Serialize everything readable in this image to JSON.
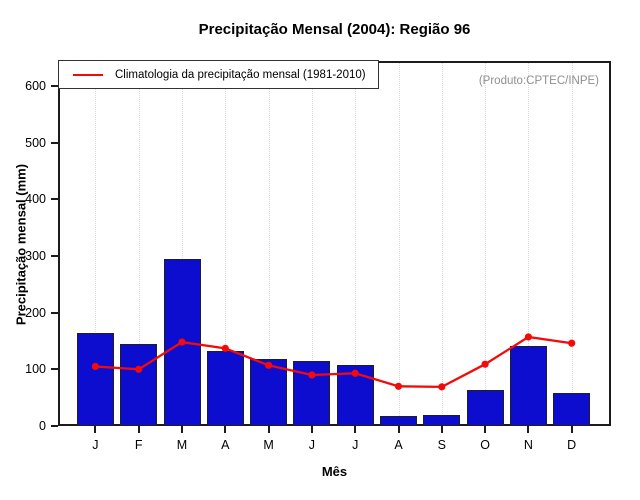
{
  "chart_data": {
    "type": "bar",
    "title": "Precipitação Mensal (2004): Região 96",
    "xlabel": "Mês",
    "ylabel": "Precipitação mensal (mm)",
    "annotation": "(Produto:CPTEC/INPE)",
    "categories": [
      "J",
      "F",
      "M",
      "A",
      "M",
      "J",
      "J",
      "A",
      "S",
      "O",
      "N",
      "D"
    ],
    "series": [
      {
        "type": "bar",
        "values": [
          164,
          144,
          294,
          132,
          119,
          114,
          107,
          18,
          19,
          63,
          141,
          59
        ],
        "color": "#0d0dd0"
      },
      {
        "type": "line",
        "label": "Climatologia da precipitação mensal (1981-2010)",
        "values": [
          105,
          100,
          148,
          137,
          107,
          90,
          93,
          70,
          69,
          109,
          157,
          146
        ],
        "color": "#f30b0b"
      }
    ],
    "yticks": [
      0,
      100,
      200,
      300,
      400,
      500,
      600
    ],
    "ylim": [
      0,
      644
    ],
    "grid": "vertical-dotted",
    "legend_position": "top-left",
    "colors": {
      "bar_fill": "#0d0dd0",
      "bar_border": "#1f1f1f",
      "climatology_line": "#f30b0b",
      "annotation_text": "#8f8f8f",
      "gridline": "#d9d9d9"
    }
  }
}
